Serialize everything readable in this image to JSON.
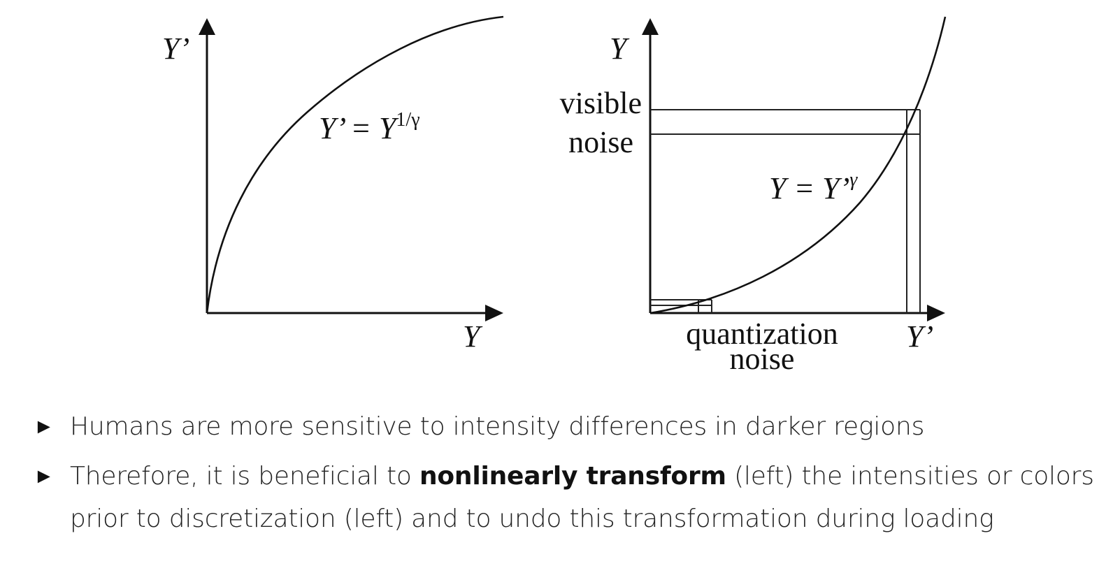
{
  "left_plot": {
    "y_axis_label": "Y’",
    "x_axis_label": "Y",
    "equation_base": "Y’ = Y",
    "equation_exponent": "1/γ"
  },
  "right_plot": {
    "y_axis_label": "Y",
    "x_axis_label": "Y’",
    "equation_base": "Y = Y’",
    "equation_exponent": "γ",
    "visible_noise_line1": "visible",
    "visible_noise_line2": "noise",
    "quantization_noise_line1": "quantization",
    "quantization_noise_line2": "noise"
  },
  "bullets": [
    {
      "marker": "►",
      "text": "Humans are more sensitive to intensity differences in darker regions"
    },
    {
      "marker": "►",
      "text_before": "Therefore, it is beneficial to ",
      "text_bold": "nonlinearly transform",
      "text_after": " (left) the intensities or colors prior to discretization (left) and to undo this transformation during loading"
    }
  ],
  "colors": {
    "line": "#111111",
    "text": "#222222"
  }
}
